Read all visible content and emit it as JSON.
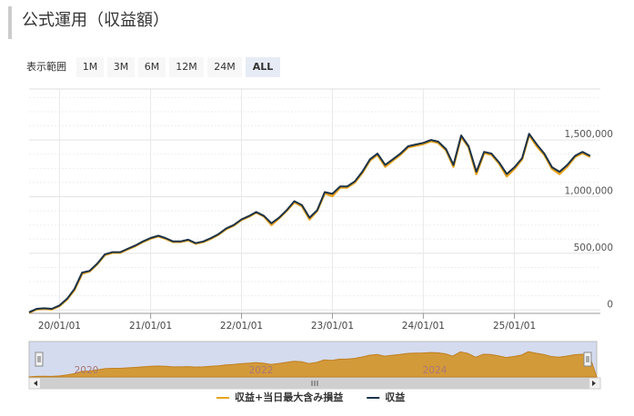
{
  "title": "公式運用（収益額）",
  "range_selector": {
    "label": "表示範囲",
    "buttons": [
      "1M",
      "3M",
      "6M",
      "12M",
      "24M",
      "ALL"
    ],
    "selected": "ALL"
  },
  "chart_data": {
    "type": "line",
    "x": [
      "2019-09-01",
      "2019-10-01",
      "2019-11-01",
      "2019-12-01",
      "2020-01-01",
      "2020-02-01",
      "2020-03-01",
      "2020-04-01",
      "2020-05-01",
      "2020-06-01",
      "2020-07-01",
      "2020-08-01",
      "2020-09-01",
      "2020-10-01",
      "2020-11-01",
      "2020-12-01",
      "2021-01-01",
      "2021-02-01",
      "2021-03-01",
      "2021-04-01",
      "2021-05-01",
      "2021-06-01",
      "2021-07-01",
      "2021-08-01",
      "2021-09-01",
      "2021-10-01",
      "2021-11-01",
      "2021-12-01",
      "2022-01-01",
      "2022-02-01",
      "2022-03-01",
      "2022-04-01",
      "2022-05-01",
      "2022-06-01",
      "2022-07-01",
      "2022-08-01",
      "2022-09-01",
      "2022-10-01",
      "2022-11-01",
      "2022-12-01",
      "2023-01-01",
      "2023-02-01",
      "2023-03-01",
      "2023-04-01",
      "2023-05-01",
      "2023-06-01",
      "2023-07-01",
      "2023-08-01",
      "2023-09-01",
      "2023-10-01",
      "2023-11-01",
      "2023-12-01",
      "2024-01-01",
      "2024-02-01",
      "2024-03-01",
      "2024-04-01",
      "2024-05-01",
      "2024-06-01",
      "2024-07-01",
      "2024-08-01",
      "2024-09-01",
      "2024-10-01",
      "2024-11-01",
      "2024-12-01",
      "2025-01-01",
      "2025-02-01",
      "2025-03-01",
      "2025-04-01",
      "2025-05-01",
      "2025-06-01",
      "2025-07-01",
      "2025-08-01",
      "2025-09-01",
      "2025-10-01",
      "2025-11-01"
    ],
    "series": [
      {
        "name": "収益+当日最大含み損益",
        "color": "#e8a31c",
        "values": [
          -25000,
          5000,
          10000,
          5000,
          35000,
          95000,
          175000,
          320000,
          340000,
          405000,
          485000,
          505000,
          505000,
          535000,
          565000,
          600000,
          630000,
          650000,
          630000,
          600000,
          600000,
          615000,
          585000,
          600000,
          630000,
          665000,
          715000,
          745000,
          795000,
          825000,
          860000,
          825000,
          750000,
          810000,
          875000,
          950000,
          915000,
          800000,
          875000,
          1030000,
          1005000,
          1080000,
          1080000,
          1125000,
          1210000,
          1320000,
          1370000,
          1265000,
          1320000,
          1370000,
          1435000,
          1450000,
          1465000,
          1490000,
          1475000,
          1410000,
          1265000,
          1530000,
          1435000,
          1200000,
          1385000,
          1370000,
          1290000,
          1180000,
          1245000,
          1330000,
          1545000,
          1445000,
          1370000,
          1245000,
          1200000,
          1265000,
          1350000,
          1385000,
          1350000
        ]
      },
      {
        "name": "収益",
        "color": "#1c3348",
        "values": [
          -20000,
          10000,
          15000,
          10000,
          40000,
          100000,
          185000,
          330000,
          345000,
          410000,
          490000,
          510000,
          510000,
          540000,
          570000,
          605000,
          635000,
          655000,
          635000,
          605000,
          605000,
          620000,
          590000,
          605000,
          635000,
          670000,
          720000,
          750000,
          800000,
          830000,
          865000,
          830000,
          765000,
          815000,
          880000,
          960000,
          925000,
          815000,
          880000,
          1040000,
          1025000,
          1090000,
          1090000,
          1135000,
          1220000,
          1330000,
          1380000,
          1280000,
          1330000,
          1380000,
          1445000,
          1460000,
          1475000,
          1500000,
          1485000,
          1420000,
          1280000,
          1540000,
          1445000,
          1220000,
          1395000,
          1380000,
          1300000,
          1200000,
          1260000,
          1340000,
          1555000,
          1460000,
          1380000,
          1260000,
          1220000,
          1280000,
          1360000,
          1395000,
          1360000
        ]
      }
    ],
    "xlim": [
      "2019-09-01",
      "2025-12-01"
    ],
    "xticks": [
      {
        "value": "2020-01-01",
        "label": "20/01/01"
      },
      {
        "value": "2021-01-01",
        "label": "21/01/01"
      },
      {
        "value": "2022-01-01",
        "label": "22/01/01"
      },
      {
        "value": "2023-01-01",
        "label": "23/01/01"
      },
      {
        "value": "2024-01-01",
        "label": "24/01/01"
      },
      {
        "value": "2025-01-01",
        "label": "25/01/01"
      }
    ],
    "ylim": [
      -30000,
      1950000
    ],
    "yticks": [
      0,
      {
        "value": 500000,
        "label": "500,000"
      },
      {
        "value": 1000000,
        "label": "1,000,000"
      },
      {
        "value": 1500000,
        "label": "1,500,000"
      }
    ],
    "yminor": [
      125000,
      250000,
      375000,
      625000,
      750000,
      875000,
      1125000,
      1250000,
      1375000,
      1625000,
      1750000,
      1875000
    ],
    "grid": true,
    "navigator": {
      "labels": [
        "2020",
        "2022",
        "2024"
      ]
    }
  }
}
